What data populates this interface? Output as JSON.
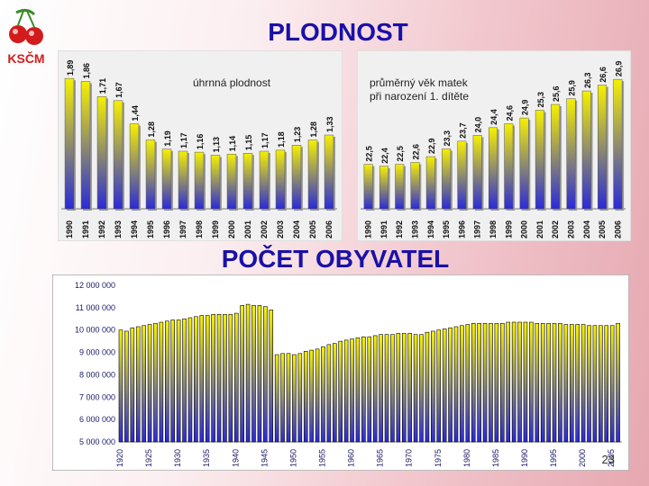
{
  "slide": {
    "title": "PLODNOST",
    "subtitle": "POČET OBYVATEL",
    "page_number": "23",
    "logo_text": "KSČM"
  },
  "colors": {
    "title": "#1a10a8",
    "bar_yellow": "#f6f000",
    "bar_blue": "#2a2ad8",
    "panel_bg": "#e8e8e8"
  },
  "chart_data": [
    {
      "type": "bar",
      "title": "úhrnná plodnost",
      "categories": [
        "1990",
        "1991",
        "1992",
        "1993",
        "1994",
        "1995",
        "1996",
        "1997",
        "1998",
        "1999",
        "2000",
        "2001",
        "2002",
        "2003",
        "2004",
        "2005",
        "2006"
      ],
      "values": [
        1.89,
        1.86,
        1.71,
        1.67,
        1.44,
        1.28,
        1.19,
        1.17,
        1.16,
        1.13,
        1.14,
        1.15,
        1.17,
        1.18,
        1.23,
        1.28,
        1.33
      ],
      "value_labels": [
        "1,89",
        "1,86",
        "1,71",
        "1,67",
        "1,44",
        "1,28",
        "1,19",
        "1,17",
        "1,16",
        "1,13",
        "1,14",
        "1,15",
        "1,17",
        "1,18",
        "1,23",
        "1,28",
        "1,33"
      ],
      "ylim": [
        0.6,
        1.9
      ],
      "xlabel": "",
      "ylabel": ""
    },
    {
      "type": "bar",
      "title_lines": [
        "průměrný věk matek",
        "při narození 1. dítěte"
      ],
      "categories": [
        "1990",
        "1991",
        "1992",
        "1993",
        "1994",
        "1995",
        "1996",
        "1997",
        "1998",
        "1999",
        "2000",
        "2001",
        "2002",
        "2003",
        "2004",
        "2005",
        "2006"
      ],
      "values": [
        22.5,
        22.4,
        22.5,
        22.6,
        22.9,
        23.3,
        23.7,
        24.0,
        24.4,
        24.6,
        24.9,
        25.3,
        25.6,
        25.9,
        26.3,
        26.6,
        26.9
      ],
      "value_labels": [
        "22,5",
        "22,4",
        "22,5",
        "22,6",
        "22,9",
        "23,3",
        "23,7",
        "24,0",
        "24,4",
        "24,6",
        "24,9",
        "25,3",
        "25,6",
        "25,9",
        "26,3",
        "26,6",
        "26,9"
      ],
      "ylim": [
        20.2,
        27.0
      ],
      "xlabel": "",
      "ylabel": ""
    },
    {
      "type": "bar",
      "title": "",
      "x_start": 1920,
      "x_end": 2006,
      "x_tick_labels": [
        "1920",
        "1925",
        "1930",
        "1935",
        "1940",
        "1945",
        "1950",
        "1955",
        "1960",
        "1965",
        "1970",
        "1975",
        "1980",
        "1985",
        "1990",
        "1995",
        "2000",
        "2005"
      ],
      "y_tick_labels": [
        "12 000 000",
        "11 000 000",
        "10 000 000",
        "9 000 000",
        "8 000 000",
        "7 000 000",
        "6 000 000",
        "5 000 000"
      ],
      "ylim": [
        5000000,
        12000000
      ],
      "values": [
        10000000,
        9950000,
        10100000,
        10150000,
        10200000,
        10250000,
        10300000,
        10350000,
        10400000,
        10450000,
        10450000,
        10500000,
        10550000,
        10600000,
        10650000,
        10650000,
        10700000,
        10700000,
        10700000,
        10700000,
        10750000,
        11100000,
        11150000,
        11100000,
        11100000,
        11050000,
        10900000,
        8900000,
        8950000,
        8950000,
        8900000,
        8950000,
        9050000,
        9100000,
        9150000,
        9250000,
        9350000,
        9400000,
        9500000,
        9550000,
        9600000,
        9650000,
        9700000,
        9700000,
        9750000,
        9800000,
        9800000,
        9800000,
        9850000,
        9850000,
        9850000,
        9800000,
        9800000,
        9900000,
        9950000,
        10000000,
        10050000,
        10100000,
        10150000,
        10200000,
        10250000,
        10300000,
        10300000,
        10300000,
        10300000,
        10300000,
        10300000,
        10350000,
        10350000,
        10350000,
        10350000,
        10350000,
        10300000,
        10300000,
        10300000,
        10300000,
        10300000,
        10250000,
        10250000,
        10250000,
        10250000,
        10200000,
        10200000,
        10200000,
        10200000,
        10200000,
        10300000
      ],
      "xlabel": "",
      "ylabel": ""
    }
  ]
}
